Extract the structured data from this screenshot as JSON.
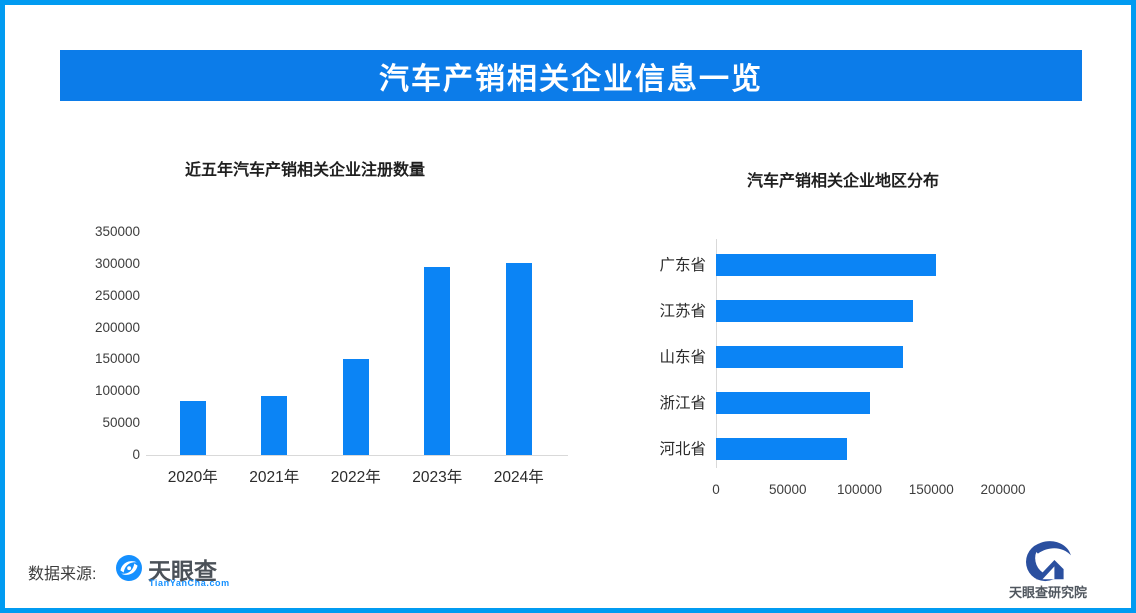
{
  "page": {
    "title_banner": "汽车产销相关企业信息一览",
    "colors": {
      "banner_bg": "#0c7ce9",
      "bar_fill": "#0b84f5",
      "page_border": "#019bf1",
      "axis_line": "#d9d9d9",
      "tianyancha_blue": "#1590ff",
      "institute_blue": "#2a4f9f",
      "tick_text": "#3d3d3d",
      "category_text": "#2b2b2b"
    },
    "icons": {
      "tianyancha": "eye-swirl-icon",
      "institute": "swoosh-house-icon"
    }
  },
  "chart_data": [
    {
      "type": "bar",
      "title": "近五年汽车产销相关企业注册数量",
      "categories": [
        "2020年",
        "2021年",
        "2022年",
        "2023年",
        "2024年"
      ],
      "values": [
        85000,
        93000,
        151000,
        295000,
        302000
      ],
      "xlabel": "",
      "ylabel": "",
      "ylim": [
        0,
        350000
      ],
      "yticks": [
        0,
        50000,
        100000,
        150000,
        200000,
        250000,
        300000,
        350000
      ],
      "grid": false,
      "legend": false,
      "bar_color": "#0b84f5"
    },
    {
      "type": "bar-horizontal",
      "title": "汽车产销相关企业地区分布",
      "categories": [
        "广东省",
        "江苏省",
        "山东省",
        "浙江省",
        "河北省"
      ],
      "values": [
        153000,
        137000,
        130000,
        107000,
        91000
      ],
      "xlabel": "",
      "ylabel": "",
      "xlim": [
        0,
        200000
      ],
      "xticks": [
        0,
        50000,
        100000,
        150000,
        200000
      ],
      "grid": false,
      "legend": false,
      "bar_color": "#0b84f5"
    }
  ],
  "footer": {
    "source_label": "数据来源:",
    "tianyancha_logo": {
      "name": "天眼查",
      "domain": "TianYanCha.com"
    },
    "institute_logo": {
      "name": "天眼查研究院"
    }
  }
}
